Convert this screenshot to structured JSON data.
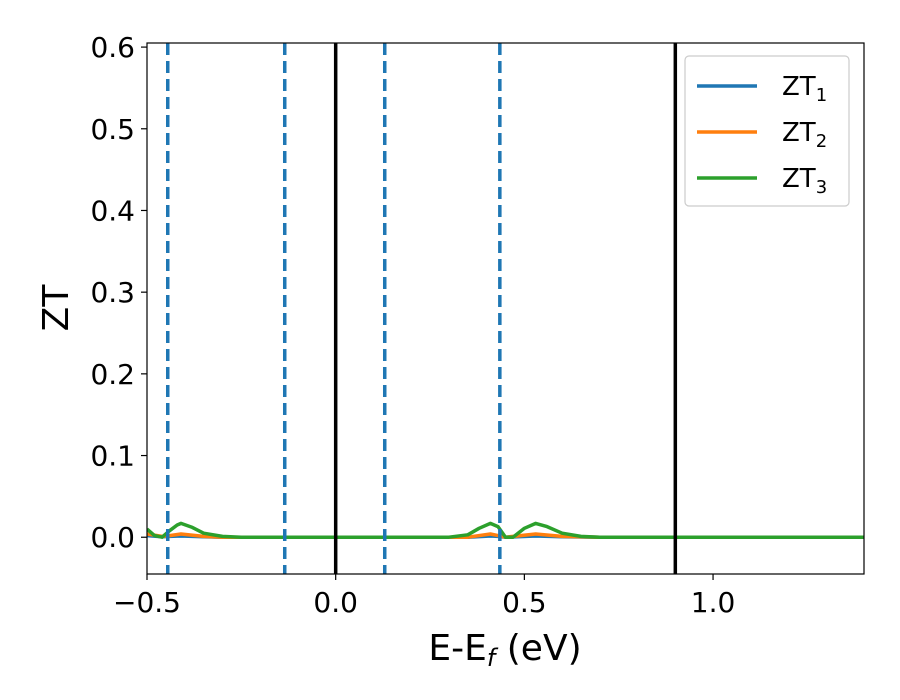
{
  "chart_data": {
    "type": "line",
    "xlabel_main": "E-E",
    "xlabel_sub": "f",
    "xlabel_tail": " (eV)",
    "ylabel": "ZT",
    "xlim": [
      -0.5,
      1.4
    ],
    "ylim": [
      -0.045,
      0.605
    ],
    "x_ticks": [
      -0.5,
      0.0,
      0.5,
      1.0
    ],
    "x_tick_labels": [
      "−0.5",
      "0.0",
      "0.5",
      "1.0"
    ],
    "y_ticks": [
      0.0,
      0.1,
      0.2,
      0.3,
      0.4,
      0.5,
      0.6
    ],
    "y_tick_labels": [
      "0.0",
      "0.1",
      "0.2",
      "0.3",
      "0.4",
      "0.5",
      "0.6"
    ],
    "grid": false,
    "legend_placement": "top-right",
    "vertical_lines_solid": [
      0.0,
      0.9
    ],
    "vertical_lines_dashed": [
      -0.445,
      -0.135,
      0.13,
      0.435
    ],
    "series": [
      {
        "name": "ZT",
        "subscript": "1",
        "color": "#1f77b4",
        "x": [
          -0.5,
          -0.46,
          -0.44,
          -0.41,
          -0.35,
          -0.3,
          0.0,
          0.35,
          0.41,
          0.43,
          0.45,
          0.53,
          0.6,
          0.7,
          1.4
        ],
        "y": [
          0.002,
          0.0005,
          0.001,
          0.0015,
          0.0005,
          0.0,
          0.0,
          0.0,
          0.0015,
          0.001,
          0.0,
          0.0015,
          0.0005,
          0.0,
          0.0
        ]
      },
      {
        "name": "ZT",
        "subscript": "2",
        "color": "#ff7f0e",
        "x": [
          -0.5,
          -0.46,
          -0.44,
          -0.41,
          -0.35,
          -0.3,
          0.0,
          0.35,
          0.41,
          0.43,
          0.45,
          0.53,
          0.6,
          0.7,
          1.4
        ],
        "y": [
          0.004,
          0.001,
          0.002,
          0.004,
          0.001,
          0.0,
          0.0,
          0.0,
          0.004,
          0.002,
          0.0,
          0.004,
          0.001,
          0.0,
          0.0
        ]
      },
      {
        "name": "ZT",
        "subscript": "3",
        "color": "#2ca02c",
        "x": [
          -0.5,
          -0.48,
          -0.46,
          -0.44,
          -0.42,
          -0.41,
          -0.38,
          -0.35,
          -0.3,
          -0.25,
          0.0,
          0.3,
          0.35,
          0.38,
          0.41,
          0.43,
          0.45,
          0.47,
          0.5,
          0.53,
          0.56,
          0.6,
          0.65,
          0.7,
          1.4
        ],
        "y": [
          0.01,
          0.002,
          0.0,
          0.008,
          0.015,
          0.017,
          0.012,
          0.005,
          0.001,
          0.0,
          0.0,
          0.0,
          0.003,
          0.011,
          0.017,
          0.013,
          0.0,
          0.0,
          0.011,
          0.017,
          0.013,
          0.005,
          0.001,
          0.0,
          0.0
        ]
      }
    ]
  }
}
